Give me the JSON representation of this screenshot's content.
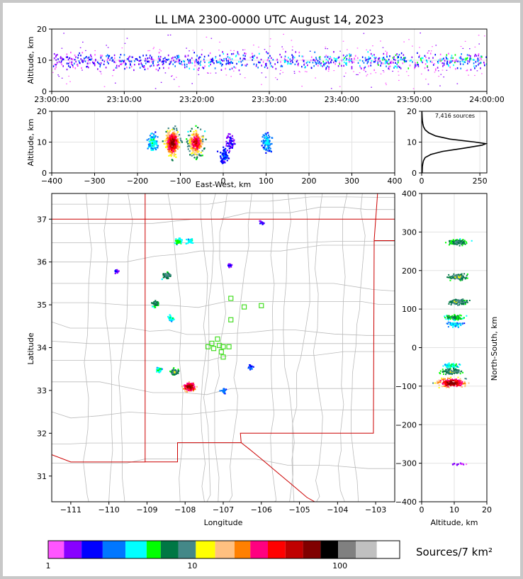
{
  "chart_data": [
    {
      "id": "altitude_vs_time",
      "type": "scatter",
      "title": "LL LMA 2300-0000 UTC August 14, 2023",
      "ylabel": "Altitude, km",
      "xlabel": "",
      "xlim": [
        "23:00:00",
        "24:00:00"
      ],
      "ylim": [
        0,
        20
      ],
      "x_ticks": [
        "23:00:00",
        "23:10:00",
        "23:20:00",
        "23:30:00",
        "23:40:00",
        "23:50:00",
        "24:00:00"
      ],
      "y_ticks": [
        "0",
        "10",
        "20"
      ],
      "grid": true,
      "altitude_band_km": [
        5,
        15
      ],
      "altitude_core_km": 10
    },
    {
      "id": "altitude_vs_eastwest",
      "type": "scatter",
      "xlabel": "East-West, km",
      "ylabel": "Altitude, km",
      "xlim": [
        -400,
        400
      ],
      "ylim": [
        0,
        20
      ],
      "x_ticks": [
        "−400",
        "−300",
        "−200",
        "−100",
        "0",
        "100",
        "200",
        "300",
        "400"
      ],
      "y_ticks": [
        "0",
        "10",
        "20"
      ],
      "grid": true,
      "clusters": [
        {
          "x": -120,
          "y": 10,
          "intensity": 1.0
        },
        {
          "x": -65,
          "y": 10,
          "intensity": 0.9
        },
        {
          "x": -165,
          "y": 10,
          "intensity": 0.3
        },
        {
          "x": 0,
          "y": 6,
          "intensity": 0.15
        },
        {
          "x": 15,
          "y": 10,
          "intensity": 0.1
        },
        {
          "x": 100,
          "y": 10,
          "intensity": 0.25
        }
      ]
    },
    {
      "id": "source_altitude_histogram",
      "type": "line",
      "annotation": "7,416 sources",
      "xlim": [
        0,
        280
      ],
      "ylim": [
        0,
        20
      ],
      "x_ticks": [
        "0",
        "250"
      ],
      "y_ticks": [
        "0",
        "10",
        "20"
      ],
      "grid": true,
      "profile": [
        {
          "alt": 0,
          "count": 2
        },
        {
          "alt": 2,
          "count": 3
        },
        {
          "alt": 3,
          "count": 5
        },
        {
          "alt": 4,
          "count": 8
        },
        {
          "alt": 5,
          "count": 15
        },
        {
          "alt": 6,
          "count": 40
        },
        {
          "alt": 7,
          "count": 90
        },
        {
          "alt": 8,
          "count": 180
        },
        {
          "alt": 9,
          "count": 260
        },
        {
          "alt": 9.5,
          "count": 275
        },
        {
          "alt": 10,
          "count": 230
        },
        {
          "alt": 11,
          "count": 120
        },
        {
          "alt": 12,
          "count": 60
        },
        {
          "alt": 13,
          "count": 30
        },
        {
          "alt": 14,
          "count": 15
        },
        {
          "alt": 15,
          "count": 8
        },
        {
          "alt": 16,
          "count": 5
        },
        {
          "alt": 17,
          "count": 3
        },
        {
          "alt": 18,
          "count": 2
        },
        {
          "alt": 20,
          "count": 1
        }
      ]
    },
    {
      "id": "plan_view_map",
      "type": "scatter",
      "xlabel": "Longitude",
      "ylabel": "Latitude",
      "xlim": [
        -111.5,
        -102.5
      ],
      "ylim": [
        30.4,
        37.6
      ],
      "x_ticks": [
        "−111",
        "−110",
        "−109",
        "−108",
        "−107",
        "−106",
        "−105",
        "−104",
        "−103"
      ],
      "y_ticks": [
        "31",
        "32",
        "33",
        "34",
        "35",
        "36",
        "37"
      ],
      "clusters": [
        {
          "lon": -108.2,
          "lat": 36.5,
          "intensity": 0.35
        },
        {
          "lon": -107.9,
          "lat": 36.5,
          "intensity": 0.3
        },
        {
          "lon": -108.5,
          "lat": 35.7,
          "intensity": 0.5
        },
        {
          "lon": -108.8,
          "lat": 35.05,
          "intensity": 0.45
        },
        {
          "lon": -108.4,
          "lat": 34.7,
          "intensity": 0.3
        },
        {
          "lon": -108.7,
          "lat": 33.5,
          "intensity": 0.3
        },
        {
          "lon": -108.3,
          "lat": 33.45,
          "intensity": 0.5
        },
        {
          "lon": -107.9,
          "lat": 33.1,
          "intensity": 1.0
        },
        {
          "lon": -107.0,
          "lat": 33.0,
          "intensity": 0.2
        },
        {
          "lon": -106.3,
          "lat": 33.55,
          "intensity": 0.15
        },
        {
          "lon": -106.85,
          "lat": 35.95,
          "intensity": 0.1
        },
        {
          "lon": -109.8,
          "lat": 35.8,
          "intensity": 0.1
        },
        {
          "lon": -106.0,
          "lat": 36.95,
          "intensity": 0.1
        }
      ],
      "stations": [
        {
          "lon": -106.8,
          "lat": 35.15
        },
        {
          "lon": -106.45,
          "lat": 34.95
        },
        {
          "lon": -106.0,
          "lat": 34.98
        },
        {
          "lon": -106.8,
          "lat": 34.65
        },
        {
          "lon": -107.15,
          "lat": 34.2
        },
        {
          "lon": -107.3,
          "lat": 34.1
        },
        {
          "lon": -107.1,
          "lat": 34.05
        },
        {
          "lon": -107.4,
          "lat": 34.02
        },
        {
          "lon": -107.25,
          "lat": 33.98
        },
        {
          "lon": -107.0,
          "lat": 34.02
        },
        {
          "lon": -106.85,
          "lat": 34.02
        },
        {
          "lon": -107.05,
          "lat": 33.9
        },
        {
          "lon": -107.0,
          "lat": 33.78
        }
      ]
    },
    {
      "id": "northsouth_vs_altitude",
      "type": "scatter",
      "xlabel": "Altitude, km",
      "ylabel": "North-South, km",
      "xlim": [
        0,
        20
      ],
      "ylim": [
        -400,
        400
      ],
      "x_ticks": [
        "0",
        "10",
        "20"
      ],
      "y_ticks": [
        "−400",
        "−300",
        "−200",
        "−100",
        "0",
        "100",
        "200",
        "300",
        "400"
      ],
      "grid": true,
      "clusters": [
        {
          "alt": 11,
          "ns": 275,
          "intensity": 0.45
        },
        {
          "alt": 11,
          "ns": 185,
          "intensity": 0.5
        },
        {
          "alt": 11,
          "ns": 120,
          "intensity": 0.5
        },
        {
          "alt": 10,
          "ns": 80,
          "intensity": 0.4
        },
        {
          "alt": 10,
          "ns": 62,
          "intensity": 0.25
        },
        {
          "alt": 9,
          "ns": -45,
          "intensity": 0.3
        },
        {
          "alt": 9,
          "ns": -60,
          "intensity": 0.5
        },
        {
          "alt": 9,
          "ns": -90,
          "intensity": 1.0
        },
        {
          "alt": 11,
          "ns": -300,
          "intensity": 0.05
        }
      ]
    }
  ],
  "colorbar": {
    "label": "Sources/7 km²",
    "tick_labels": [
      "1",
      "10",
      "100"
    ],
    "colors": [
      "#ff55ff",
      "#8800ff",
      "#0000ff",
      "#0077ff",
      "#00ffff",
      "#00ff00",
      "#007744",
      "#448888",
      "#ffff00",
      "#ffc080",
      "#ff8000",
      "#ff0080",
      "#ff0000",
      "#c00000",
      "#800000",
      "#000000",
      "#808080",
      "#c0c0c0",
      "#ffffff"
    ]
  }
}
